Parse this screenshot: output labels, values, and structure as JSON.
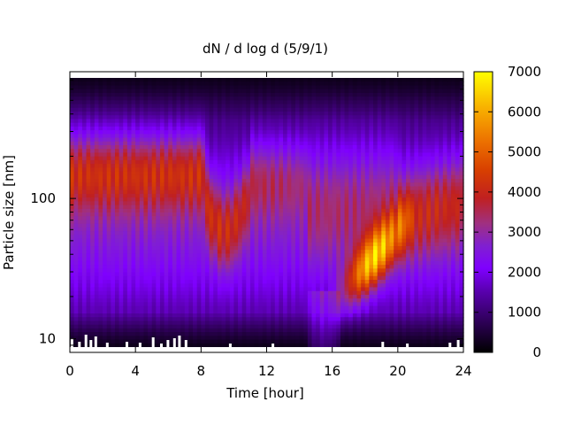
{
  "chart_data": {
    "type": "heatmap",
    "title": "dN / d log d (5/9/1)",
    "xlabel": "Time [hour]",
    "ylabel": "Particle size [nm]",
    "x_ticks": [
      0,
      4,
      8,
      12,
      16,
      20,
      24
    ],
    "xlim": [
      0,
      24
    ],
    "y_scale": "log",
    "y_ticks": [
      10,
      100
    ],
    "ylim": [
      8,
      800
    ],
    "colorbar": {
      "range": [
        0,
        7000
      ],
      "ticks": [
        0,
        1000,
        2000,
        3000,
        4000,
        5000,
        6000,
        7000
      ],
      "palette": "black-purple-blue-red-orange-yellow"
    },
    "features": [
      {
        "description": "band",
        "time_range": [
          0,
          8
        ],
        "size_range": [
          90,
          250
        ],
        "value": 4200
      },
      {
        "description": "band",
        "time_range": [
          8,
          10
        ],
        "size_range": [
          50,
          150
        ],
        "value": 3500
      },
      {
        "description": "event",
        "time_range": [
          15,
          20
        ],
        "size_range": [
          15,
          60
        ],
        "value": 6300
      },
      {
        "description": "band",
        "time_range": [
          20,
          24
        ],
        "size_range": [
          40,
          160
        ],
        "value": 4000
      }
    ]
  },
  "colors": {
    "background": "#ffffff",
    "axis": "#000000",
    "missing_data": "#ffffff"
  }
}
